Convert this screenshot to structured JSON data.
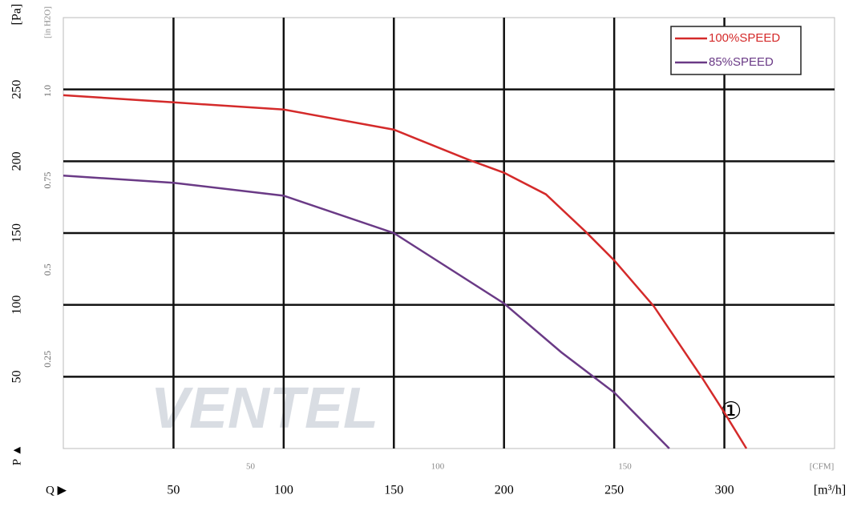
{
  "chart_data": {
    "type": "line",
    "y_label": "[Pa]",
    "y2_label": "[in H2O]",
    "p_label": "P ▲",
    "q_label": "Q ▶",
    "x_label": "[m³/h]",
    "x2_label": "[CFM]",
    "annotation": "①",
    "watermark": "VENTEL",
    "xlim": [
      0,
      350
    ],
    "xticks": [
      50,
      100,
      150,
      200,
      250,
      300
    ],
    "ylim": [
      0,
      300
    ],
    "yticks": [
      50,
      100,
      150,
      200,
      250
    ],
    "y2lim": [
      0,
      1.205
    ],
    "y2ticks": [
      0.25,
      0.5,
      0.75,
      {
        "value": 1,
        "label": "1.0"
      }
    ],
    "x2lim": [
      0,
      206
    ],
    "x2ticks": [
      50,
      100,
      150
    ],
    "grid": true,
    "legend": "upper right",
    "series": [
      {
        "name": "100%SPEED",
        "color": "#d42a2a",
        "x": [
          0,
          50,
          100,
          150,
          184,
          200,
          219,
          237,
          250,
          268,
          290,
          300,
          310
        ],
        "values": [
          246,
          241,
          236,
          222,
          201,
          192,
          177,
          151,
          131,
          99,
          49,
          25,
          0
        ]
      },
      {
        "name": "85%SPEED",
        "color": "#6a3a86",
        "x": [
          0,
          50,
          100,
          150,
          200,
          226,
          250,
          275
        ],
        "values": [
          190,
          185,
          176,
          150,
          101,
          67,
          39,
          0
        ]
      }
    ]
  }
}
